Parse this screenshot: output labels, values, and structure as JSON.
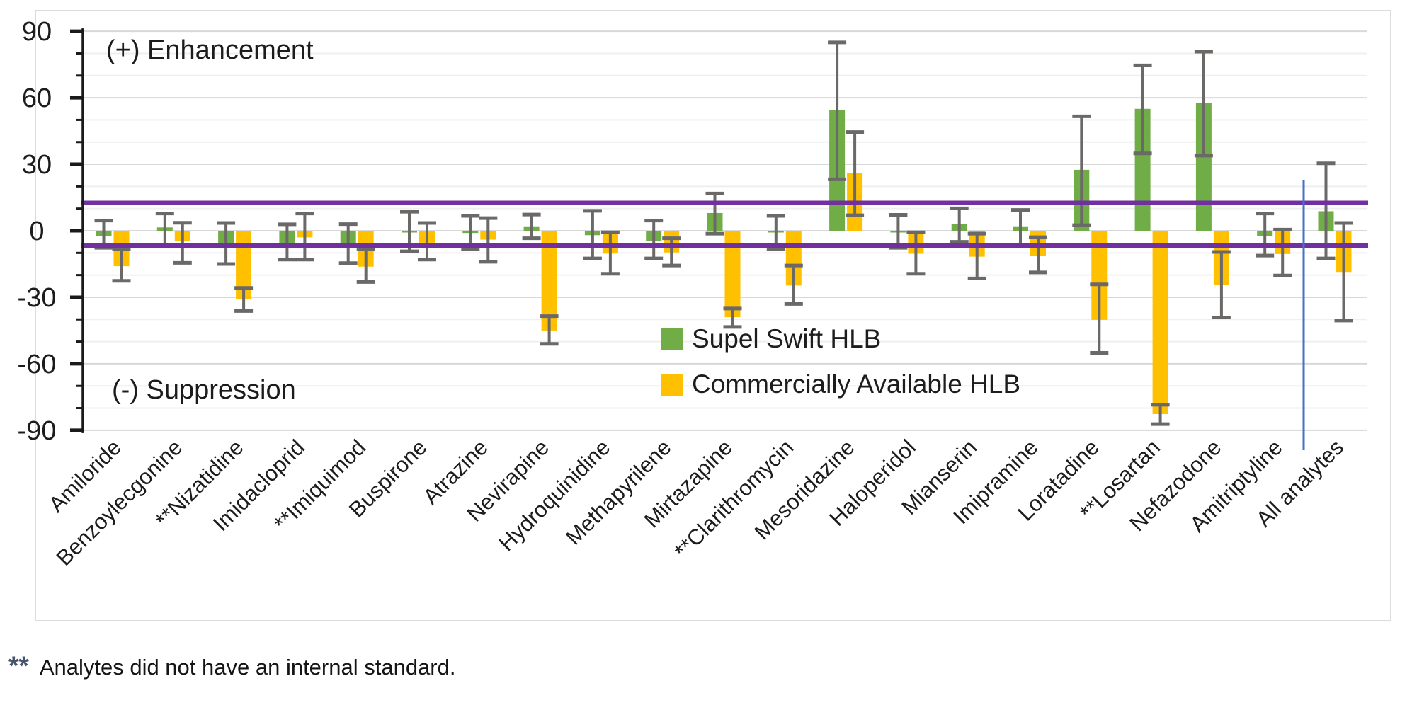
{
  "annotations": {
    "enhancement": "(+) Enhancement",
    "suppression": "(-) Suppression"
  },
  "legend": [
    {
      "label": "Supel Swift HLB",
      "color": "#70AD47"
    },
    {
      "label": "Commercially Available HLB",
      "color": "#FFC000"
    }
  ],
  "footnote": {
    "marker": "**",
    "text": "Analytes did not have an internal standard."
  },
  "colors": {
    "supel_green": "#70AD47",
    "commercial_yellow": "#FFC000",
    "limit_purple": "#7030A0",
    "separator_blue": "#4472C4",
    "error_bar_gray": "#6b6868",
    "axis_black": "#1a1a1a",
    "grid_major": "#d8d8d8",
    "grid_minor": "#efefef"
  },
  "chart_data": {
    "type": "bar",
    "title": "",
    "xlabel": "",
    "ylabel": "",
    "ylim": [
      -90,
      90
    ],
    "ytick_major_step": 30,
    "ytick_minor_step": 10,
    "grid": true,
    "legend_position": "center",
    "reference_lines": {
      "upper": 12.6,
      "lower": -6.7
    },
    "separator_line": {
      "between": [
        "Amitriptyline",
        "All analytes"
      ],
      "note": "vertical blue divider before All analytes"
    },
    "categories": [
      "Amiloride",
      "Benzoylecgonine",
      "**Nizatidine",
      "Imidacloprid",
      "**Imiquimod",
      "Buspirone",
      "Atrazine",
      "Nevirapine",
      "Hydroquinidine",
      "Methapyrilene",
      "Mirtazapine",
      "**Clarithromycin",
      "Mesoridazine",
      "Haloperidol",
      "Mianserin",
      "Imipramine",
      "Loratadine",
      "**Losartan",
      "Nefazodone",
      "Amitriptyline",
      "All analytes"
    ],
    "series": [
      {
        "name": "Supel Swift HLB",
        "color": "#70AD47",
        "values": [
          -2.3,
          1.5,
          -6.5,
          -6.0,
          -6.6,
          -0.8,
          -1.0,
          2.0,
          -2.0,
          -4.5,
          8.0,
          -0.8,
          54.3,
          -0.8,
          3.0,
          2.0,
          27.5,
          55.0,
          57.5,
          -2.5,
          8.8
        ],
        "error_high": [
          4.6,
          7.8,
          3.5,
          2.9,
          3.0,
          8.6,
          6.7,
          7.3,
          9.0,
          4.6,
          16.8,
          6.7,
          85.0,
          7.2,
          10.1,
          9.4,
          51.6,
          74.6,
          80.8,
          7.8,
          30.4
        ],
        "error_low": [
          -7.7,
          -6.5,
          -15.0,
          -13.0,
          -14.6,
          -9.3,
          -8.2,
          -3.4,
          -12.5,
          -12.5,
          -1.3,
          -8.2,
          23.2,
          -7.7,
          -5.0,
          -6.6,
          2.5,
          34.9,
          33.9,
          -11.2,
          -12.5
        ]
      },
      {
        "name": "Commercially Available HLB",
        "color": "#FFC000",
        "values": [
          -16.0,
          -4.6,
          -31.0,
          -3.0,
          -16.2,
          -5.4,
          -4.0,
          -45.0,
          -10.3,
          -9.8,
          -39.0,
          -24.7,
          26.0,
          -10.4,
          -11.7,
          -11.2,
          -40.2,
          -82.7,
          -24.5,
          -10.5,
          -18.6
        ],
        "error_high": [
          -8.2,
          3.6,
          -25.8,
          7.8,
          -8.2,
          3.5,
          5.7,
          -38.5,
          -0.7,
          -3.4,
          -35.1,
          -15.7,
          44.5,
          -0.7,
          -1.3,
          -2.9,
          -24.2,
          -78.5,
          -9.6,
          0.5,
          3.5
        ],
        "error_low": [
          -22.6,
          -14.5,
          -36.2,
          -13.0,
          -23.1,
          -13.0,
          -14.0,
          -51.0,
          -19.4,
          -15.7,
          -43.4,
          -33.0,
          7.0,
          -19.4,
          -21.5,
          -18.8,
          -55.1,
          -87.2,
          -39.1,
          -20.2,
          -40.5
        ]
      }
    ]
  }
}
